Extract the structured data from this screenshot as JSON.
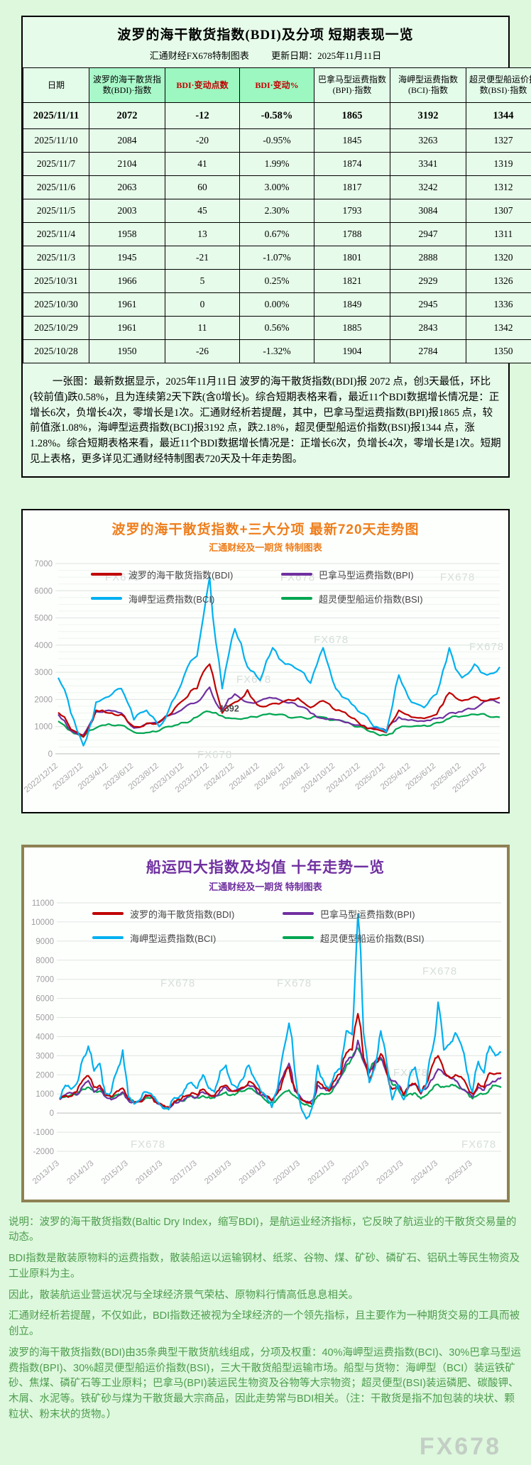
{
  "page": {
    "watermark": "FX678",
    "background": "#ddf8dd"
  },
  "table_section": {
    "title": "波罗的海干散货指数(BDI)及分项 短期表现一览",
    "subtitle_left": "汇通财经FX678特制图表",
    "subtitle_right": "更新日期：2025年11月11日"
  },
  "chart_data": [
    {
      "type": "table",
      "columns": [
        "日期",
        "波罗的海干散货指数(BDI)·指数",
        "BDI·变动点数",
        "BDI·变动%",
        "巴拿马型运费指数(BPI)·指数",
        "海岬型运费指数(BCI)·指数",
        "超灵便型船运价指数(BSI)·指数"
      ],
      "rows": [
        [
          "2025/11/11",
          "2072",
          "-12",
          "-0.58%",
          "1865",
          "3192",
          "1344"
        ],
        [
          "2025/11/10",
          "2084",
          "-20",
          "-0.95%",
          "1845",
          "3263",
          "1327"
        ],
        [
          "2025/11/7",
          "2104",
          "41",
          "1.99%",
          "1874",
          "3341",
          "1319"
        ],
        [
          "2025/11/6",
          "2063",
          "60",
          "3.00%",
          "1817",
          "3242",
          "1312"
        ],
        [
          "2025/11/5",
          "2003",
          "45",
          "2.30%",
          "1793",
          "3084",
          "1307"
        ],
        [
          "2025/11/4",
          "1958",
          "13",
          "0.67%",
          "1788",
          "2947",
          "1311"
        ],
        [
          "2025/11/3",
          "1945",
          "-21",
          "-1.07%",
          "1801",
          "2888",
          "1320"
        ],
        [
          "2025/10/31",
          "1966",
          "5",
          "0.25%",
          "1821",
          "2929",
          "1326"
        ],
        [
          "2025/10/30",
          "1961",
          "0",
          "0.00%",
          "1849",
          "2945",
          "1336"
        ],
        [
          "2025/10/29",
          "1961",
          "11",
          "0.56%",
          "1885",
          "2843",
          "1342"
        ],
        [
          "2025/10/28",
          "1950",
          "-26",
          "-1.32%",
          "1904",
          "2784",
          "1350"
        ]
      ],
      "note": "一张图：最新数据显示，2025年11月11日 波罗的海干散货指数(BDI)报 2072 点，创3天最低，环比(较前值)跌0.58%，且为连续第2天下跌(含0增长)。综合短期表格来看，最近11个BDI数据增长情况是：正增长6次，负增长4次，零增长是1次。汇通财经析若提醒，其中，巴拿马型运费指数(BPI)报1865 点，较前值涨1.08%，海岬型运费指数(BCI)报3192 点，跌2.18%，超灵便型船运价指数(BSI)报1344 点，涨1.28%。综合短期表格来看，最近11个BDI数据增长情况是：正增长6次，负增长4次，零增长是1次。短期见上表格，更多详见汇通财经特制图表720天及十年走势图。"
    },
    {
      "type": "line",
      "title": "波罗的海干散货指数+三大分项  最新720天走势图",
      "subtitle": "汇通财经及一期货 特制图表",
      "title_color": "#ef7d1a",
      "legend_position": "top",
      "grid": true,
      "ylim": [
        0,
        7000
      ],
      "ytick": 1000,
      "ytick_minor": 250,
      "noise": 110,
      "floor": 50,
      "x_labels": [
        "2022/12/12",
        "2023/2/12",
        "2023/4/12",
        "2023/6/12",
        "2023/8/12",
        "2023/10/12",
        "2023/12/12",
        "2024/2/12",
        "2024/4/12",
        "2024/6/12",
        "2024/8/12",
        "2024/10/12",
        "2024/12/12",
        "2025/2/12",
        "2025/4/12",
        "2025/6/12",
        "2025/8/12",
        "2025/10/12"
      ],
      "x_labels_end_frac": 0.97,
      "z_order": [
        3,
        1,
        0,
        2
      ],
      "annotations": [
        {
          "text": "1392",
          "fx": 0.365,
          "value": 1560
        }
      ],
      "watermarks": [
        [
          0.17,
          0.09
        ],
        [
          0.53,
          0.09
        ],
        [
          0.86,
          0.09
        ],
        [
          0.6,
          0.34
        ],
        [
          0.92,
          0.37
        ],
        [
          0.44,
          0.5
        ],
        [
          0.36,
          0.8
        ]
      ],
      "series": [
        {
          "id": "bdi",
          "name": "波罗的海干散货指数(BDI)",
          "color": "#c00000",
          "values": [
            1520,
            900,
            620,
            1600,
            1500,
            1450,
            1000,
            1120,
            1180,
            1500,
            2000,
            2400,
            3300,
            1500,
            1900,
            2350,
            1750,
            1850,
            1950,
            2050,
            1700,
            1950,
            1600,
            1400,
            1050,
            900,
            780,
            1600,
            1350,
            1300,
            1450,
            2250,
            1950,
            2100,
            1950,
            2072
          ]
        },
        {
          "id": "bpi",
          "name": "巴拿马型运费指数(BPI)",
          "color": "#7030a0",
          "values": [
            1450,
            850,
            700,
            1550,
            1600,
            1500,
            950,
            1100,
            1150,
            1450,
            1700,
            1900,
            2450,
            1600,
            2200,
            1900,
            1950,
            2050,
            1900,
            1750,
            1500,
            1300,
            1250,
            1150,
            1050,
            950,
            850,
            1350,
            1250,
            1200,
            1300,
            1500,
            1550,
            1650,
            1950,
            1865
          ]
        },
        {
          "id": "bci",
          "name": "海岬型运费指数(BCI)",
          "color": "#00b0f0",
          "values": [
            2800,
            1500,
            300,
            1900,
            2100,
            2400,
            1250,
            1600,
            1000,
            1900,
            2900,
            3600,
            6500,
            2400,
            4600,
            3200,
            2700,
            3900,
            3300,
            3100,
            2600,
            3900,
            2400,
            2000,
            1500,
            1000,
            800,
            2900,
            1900,
            1700,
            2200,
            3900,
            2800,
            3300,
            2900,
            3192
          ]
        },
        {
          "id": "bsi",
          "name": "超灵便型船运价指数(BSI)",
          "color": "#00a651",
          "values": [
            1200,
            850,
            620,
            950,
            1100,
            1050,
            800,
            780,
            850,
            1000,
            1150,
            1350,
            1550,
            1392,
            1300,
            1320,
            1400,
            1450,
            1420,
            1350,
            1300,
            1350,
            1250,
            1150,
            1000,
            800,
            680,
            950,
            1000,
            1050,
            1150,
            1300,
            1380,
            1450,
            1400,
            1344
          ]
        }
      ]
    },
    {
      "type": "line",
      "title": "船运四大指数及均值 十年走势一览",
      "subtitle": "汇通财经及一期货 特制图表",
      "title_color": "#7030a0",
      "legend_position": "top",
      "grid": true,
      "ylim": [
        -2000,
        11000
      ],
      "ytick": 1000,
      "noise": 130,
      "floor": -350,
      "x_labels": [
        "2013/1/3",
        "2014/1/3",
        "2015/1/3",
        "2016/1/3",
        "2017/1/3",
        "2018/1/3",
        "2019/1/3",
        "2020/1/3",
        "2021/1/3",
        "2022/1/3",
        "2023/1/3",
        "2024/1/3",
        "2025/1/3"
      ],
      "x_labels_end_frac": 0.935,
      "z_order": [
        3,
        1,
        0,
        2
      ],
      "annotations": [],
      "watermarks": [
        [
          0.28,
          0.3
        ],
        [
          0.52,
          0.3
        ],
        [
          0.82,
          0.26
        ],
        [
          0.76,
          0.6
        ],
        [
          0.22,
          0.84
        ],
        [
          0.9,
          0.84
        ]
      ],
      "series": [
        {
          "id": "bdi",
          "name": "波罗的海干散货指数(BDI)",
          "color": "#c00000",
          "values": [
            750,
            900,
            880,
            1100,
            1700,
            1950,
            1350,
            1450,
            950,
            850,
            1150,
            1300,
            750,
            560,
            600,
            900,
            890,
            540,
            400,
            310,
            620,
            700,
            900,
            1050,
            950,
            1250,
            1000,
            900,
            1350,
            1450,
            1150,
            1150,
            1350,
            1650,
            1450,
            1050,
            900,
            650,
            1050,
            1800,
            2400,
            1300,
            750,
            550,
            450,
            1650,
            1350,
            1150,
            1700,
            2050,
            3150,
            3300,
            5200,
            2900,
            1750,
            2550,
            3100,
            2150,
            1250,
            1350,
            950,
            1450,
            1550,
            1050,
            1550,
            2500,
            3000,
            2250,
            1850,
            2000,
            1900,
            1450,
            1000,
            1550,
            1350,
            2100,
            2050,
            2072
          ]
        },
        {
          "id": "bpi",
          "name": "巴拿马型运费指数(BPI)",
          "color": "#7030a0",
          "values": [
            700,
            950,
            1050,
            950,
            1400,
            1700,
            1100,
            1300,
            850,
            700,
            850,
            1100,
            650,
            550,
            600,
            950,
            850,
            500,
            350,
            290,
            580,
            650,
            750,
            900,
            850,
            1100,
            950,
            850,
            1150,
            1350,
            1150,
            1250,
            1300,
            1450,
            1350,
            950,
            850,
            650,
            1050,
            1950,
            2600,
            1150,
            850,
            600,
            650,
            1450,
            1300,
            1150,
            1400,
            1900,
            2700,
            2900,
            3800,
            2700,
            2100,
            2700,
            2900,
            2100,
            1700,
            1450,
            950,
            1450,
            1500,
            1000,
            1300,
            1750,
            2300,
            2050,
            1900,
            1700,
            1300,
            1100,
            850,
            1350,
            1200,
            1500,
            1650,
            1865
          ]
        },
        {
          "id": "bci",
          "name": "海岬型运费指数(BCI)",
          "color": "#00b0f0",
          "values": [
            750,
            1450,
            1250,
            1550,
            2800,
            3500,
            2200,
            2600,
            1000,
            1100,
            2200,
            3300,
            850,
            480,
            700,
            1100,
            1000,
            600,
            250,
            180,
            800,
            900,
            1300,
            1600,
            1300,
            2000,
            1300,
            1100,
            2200,
            2500,
            1500,
            1300,
            1800,
            2500,
            1800,
            1200,
            900,
            300,
            1300,
            3200,
            4700,
            2200,
            400,
            -300,
            250,
            2500,
            1700,
            1300,
            2100,
            2300,
            4300,
            4100,
            10400,
            4200,
            1600,
            2400,
            4300,
            2700,
            700,
            1500,
            700,
            1900,
            2400,
            1100,
            1600,
            3300,
            5800,
            3300,
            3600,
            4200,
            3600,
            2200,
            1100,
            2700,
            2100,
            3500,
            3000,
            3192
          ]
        },
        {
          "id": "bsi",
          "name": "超灵便型船运价指数(BSI)",
          "color": "#00a651",
          "values": [
            750,
            850,
            950,
            950,
            1250,
            1350,
            1100,
            1150,
            950,
            800,
            950,
            1050,
            700,
            580,
            650,
            800,
            800,
            550,
            350,
            270,
            580,
            650,
            750,
            900,
            800,
            900,
            850,
            800,
            950,
            1100,
            950,
            1050,
            1150,
            1300,
            1150,
            950,
            650,
            550,
            750,
            1050,
            1200,
            900,
            600,
            450,
            350,
            900,
            1000,
            1000,
            1400,
            1900,
            2500,
            2900,
            3400,
            2700,
            2200,
            2700,
            2800,
            2300,
            1500,
            1300,
            900,
            1000,
            1050,
            750,
            950,
            1250,
            1500,
            1350,
            1400,
            1450,
            1300,
            1100,
            750,
            950,
            1000,
            1250,
            1450,
            1344
          ]
        }
      ]
    }
  ],
  "footer": {
    "lines": [
      "说明：波罗的海干散货指数(Baltic Dry Index，缩写BDI)，是航运业经济指标，它反映了航运业的干散货交易量的动态。",
      "BDI指数是散装原物料的运费指数，散装船运以运输钢材、纸浆、谷物、煤、矿砂、磷矿石、铝矾土等民生物资及工业原料为主。",
      "因此，散装航运业营运状况与全球经济景气荣枯、原物料行情高低息息相关。",
      "汇通财经析若提醒，不仅如此，BDI指数还被视为全球经济的一个领先指标，且主要作为一种期货交易的工具而被创立。",
      "波罗的海干散货指数(BDI)由35条典型干散货航线组成，分项及权重：40%海岬型运费指数(BCI)、30%巴拿马型运费指数(BPI)、30%超灵便型船运价指数(BSI)，三大干散货船型运输市场。船型与货物：海岬型（BCI）装运铁矿砂、焦煤、磷矿石等工业原料；巴拿马(BPI)装运民生物资及谷物等大宗物资；超灵便型(BSI)装运磷肥、碳酸钾、木屑、水泥等。铁矿砂与煤为干散货最大宗商品，因此走势常与BDI相关。（注：干散货是指不加包装的块状、颗粒状、粉末状的货物。）"
    ]
  }
}
